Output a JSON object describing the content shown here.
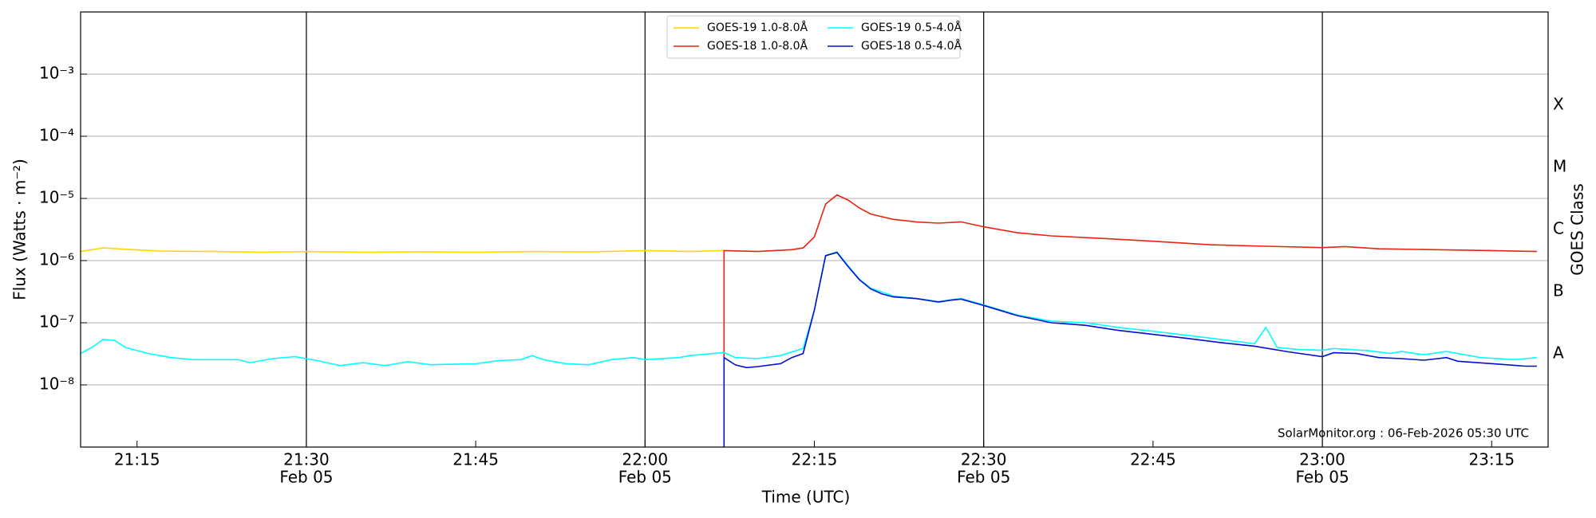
{
  "chart_data": {
    "type": "line",
    "ylabel": "Flux (Watts · m⁻²)",
    "xlabel": "Time (UTC)",
    "y2label": "GOES Class",
    "annotation": "SolarMonitor.org : 06-Feb-2026 05:30 UTC",
    "log_y": true,
    "grid": true,
    "legend": "top",
    "xlim": [
      "21:10",
      "23:20"
    ],
    "xticks": [
      {
        "value": "21:15",
        "label": [
          "21:15"
        ]
      },
      {
        "value": "21:30",
        "label": [
          "21:30",
          "Feb 05"
        ]
      },
      {
        "value": "21:45",
        "label": [
          "21:45"
        ]
      },
      {
        "value": "22:00",
        "label": [
          "22:00",
          "Feb 05"
        ]
      },
      {
        "value": "22:15",
        "label": [
          "22:15"
        ]
      },
      {
        "value": "22:30",
        "label": [
          "22:30",
          "Feb 05"
        ]
      },
      {
        "value": "22:45",
        "label": [
          "22:45"
        ]
      },
      {
        "value": "23:00",
        "label": [
          "23:00",
          "Feb 05"
        ]
      },
      {
        "value": "23:15",
        "label": [
          "23:15"
        ]
      }
    ],
    "xgrid": [
      "21:30",
      "22:00",
      "22:30",
      "23:00"
    ],
    "ylim": [
      1e-09,
      0.01
    ],
    "yticks": [
      {
        "value": 1e-08,
        "label": "10⁻⁸"
      },
      {
        "value": 1e-07,
        "label": "10⁻⁷"
      },
      {
        "value": 1e-06,
        "label": "10⁻⁶"
      },
      {
        "value": 1e-05,
        "label": "10⁻⁵"
      },
      {
        "value": 0.0001,
        "label": "10⁻⁴"
      },
      {
        "value": 0.001,
        "label": "10⁻³"
      }
    ],
    "y2lim": [
      1e-09,
      0.01
    ],
    "y2ticks": [
      {
        "value": 1e-08,
        "label": "A"
      },
      {
        "value": 1e-07,
        "label": "B"
      },
      {
        "value": 1e-06,
        "label": "C"
      },
      {
        "value": 1e-05,
        "label": "M"
      },
      {
        "value": 0.0001,
        "label": "X"
      }
    ],
    "series": [
      {
        "name": "GOES-19 1.0-8.0Å",
        "color": "#ffd700",
        "x": [
          "21:10",
          "21:12",
          "21:14",
          "21:17",
          "21:22",
          "21:26",
          "21:30",
          "21:35",
          "21:40",
          "21:45",
          "21:50",
          "21:55",
          "22:00",
          "22:04",
          "22:07"
        ],
        "values": [
          1.4e-06,
          1.6e-06,
          1.52e-06,
          1.42e-06,
          1.4e-06,
          1.36e-06,
          1.4e-06,
          1.36e-06,
          1.38e-06,
          1.36e-06,
          1.4e-06,
          1.38e-06,
          1.45e-06,
          1.4e-06,
          1.45e-06
        ]
      },
      {
        "name": "GOES-18 1.0-8.0Å",
        "color": "#e8230e",
        "x": [
          "22:07",
          "22:07",
          "22:10",
          "22:13",
          "22:14",
          "22:15",
          "22:16",
          "22:17",
          "22:18",
          "22:19",
          "22:20",
          "22:22",
          "22:24",
          "22:26",
          "22:28",
          "22:30",
          "22:33",
          "22:36",
          "22:40",
          "22:45",
          "22:50",
          "22:55",
          "23:00",
          "23:02",
          "23:05",
          "23:10",
          "23:15",
          "23:19"
        ],
        "values": [
          2.75e-08,
          1.45e-06,
          1.4e-06,
          1.5e-06,
          1.6e-06,
          2.4e-06,
          8.1e-06,
          1.14e-05,
          9.4e-06,
          7e-06,
          5.6e-06,
          4.6e-06,
          4.2e-06,
          4e-06,
          4.2e-06,
          3.5e-06,
          2.8e-06,
          2.5e-06,
          2.3e-06,
          2.05e-06,
          1.8e-06,
          1.7e-06,
          1.62e-06,
          1.68e-06,
          1.55e-06,
          1.5e-06,
          1.45e-06,
          1.4e-06
        ]
      },
      {
        "name": "GOES-19 0.5-4.0Å",
        "color": "#00ffff",
        "x": [
          "21:10",
          "21:11",
          "21:12",
          "21:13",
          "21:14",
          "21:16",
          "21:18",
          "21:20",
          "21:24",
          "21:25",
          "21:27",
          "21:29",
          "21:31",
          "21:33",
          "21:35",
          "21:37",
          "21:39",
          "21:41",
          "21:45",
          "21:47",
          "21:49",
          "21:50",
          "21:51",
          "21:53",
          "21:55",
          "21:57",
          "21:59",
          "22:00",
          "22:03",
          "22:04",
          "22:06",
          "22:07",
          "22:08",
          "22:10",
          "22:12",
          "22:14",
          "22:15",
          "22:16",
          "22:17",
          "22:18",
          "22:19",
          "22:20",
          "22:22",
          "22:24",
          "22:26",
          "22:28",
          "22:30",
          "22:33",
          "22:36",
          "22:39",
          "22:42",
          "22:45",
          "22:48",
          "22:51",
          "22:54",
          "22:55",
          "22:56",
          "22:58",
          "23:00",
          "23:01",
          "23:04",
          "23:06",
          "23:07",
          "23:09",
          "23:11",
          "23:12",
          "23:14",
          "23:17",
          "23:19"
        ],
        "values": [
          3.2e-08,
          4e-08,
          5.4e-08,
          5.2e-08,
          4e-08,
          3.2e-08,
          2.75e-08,
          2.55e-08,
          2.55e-08,
          2.28e-08,
          2.65e-08,
          2.85e-08,
          2.45e-08,
          2.04e-08,
          2.28e-08,
          2.04e-08,
          2.37e-08,
          2.11e-08,
          2.19e-08,
          2.45e-08,
          2.55e-08,
          2.96e-08,
          2.55e-08,
          2.19e-08,
          2.11e-08,
          2.55e-08,
          2.75e-08,
          2.55e-08,
          2.75e-08,
          2.96e-08,
          3.2e-08,
          3.31e-08,
          2.75e-08,
          2.65e-08,
          2.96e-08,
          3.85e-08,
          1.6e-07,
          1.2e-06,
          1.38e-06,
          8.2e-07,
          5e-07,
          3.6e-07,
          2.7e-07,
          2.45e-07,
          2.2e-07,
          2.45e-07,
          1.93e-07,
          1.33e-07,
          1.06e-07,
          1e-07,
          8.4e-08,
          7.3e-08,
          6.3e-08,
          5.4e-08,
          4.6e-08,
          8.4e-08,
          4e-08,
          3.7e-08,
          3.6e-08,
          3.85e-08,
          3.57e-08,
          3.2e-08,
          3.44e-08,
          3.07e-08,
          3.44e-08,
          3.2e-08,
          2.75e-08,
          2.55e-08,
          2.75e-08
        ]
      },
      {
        "name": "GOES-18 0.5-4.0Å",
        "color": "#0010d0",
        "x": [
          "22:07",
          "22:07",
          "22:08",
          "22:09",
          "22:10",
          "22:12",
          "22:13",
          "22:14",
          "22:15",
          "22:16",
          "22:17",
          "22:18",
          "22:19",
          "22:20",
          "22:21",
          "22:22",
          "22:24",
          "22:25",
          "22:26",
          "22:27",
          "22:28",
          "22:30",
          "22:33",
          "22:36",
          "22:39",
          "22:42",
          "22:45",
          "22:48",
          "22:51",
          "22:54",
          "22:57",
          "23:00",
          "23:01",
          "23:03",
          "23:05",
          "23:07",
          "23:09",
          "23:11",
          "23:12",
          "23:15",
          "23:18",
          "23:19"
        ],
        "values": [
          1e-09,
          2.75e-08,
          2.1e-08,
          1.9e-08,
          1.97e-08,
          2.2e-08,
          2.75e-08,
          3.2e-08,
          1.6e-07,
          1.2e-06,
          1.35e-06,
          8e-07,
          4.9e-07,
          3.5e-07,
          2.9e-07,
          2.6e-07,
          2.45e-07,
          2.3e-07,
          2.15e-07,
          2.3e-07,
          2.4e-07,
          1.9e-07,
          1.3e-07,
          1e-07,
          9.1e-08,
          7.5e-08,
          6.5e-08,
          5.6e-08,
          4.8e-08,
          4.2e-08,
          3.4e-08,
          2.85e-08,
          3.3e-08,
          3.2e-08,
          2.75e-08,
          2.65e-08,
          2.5e-08,
          2.75e-08,
          2.4e-08,
          2.2e-08,
          2e-08,
          2e-08
        ]
      }
    ]
  }
}
